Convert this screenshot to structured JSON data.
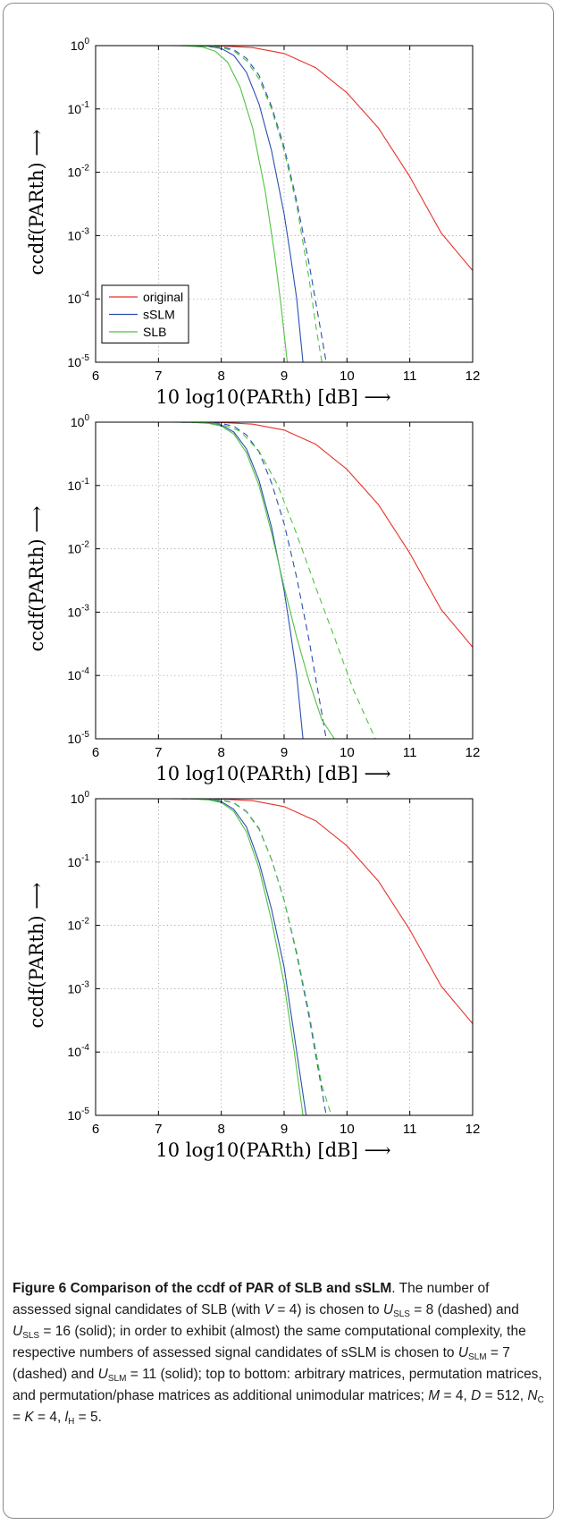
{
  "figure": {
    "caption": {
      "label": "Figure 6",
      "title": "Comparison of the ccdf of PAR of SLB and sSLM",
      "t1": ". The number of assessed signal candidates of SLB (with ",
      "V": "V",
      "t2": " = 4) is chosen to ",
      "U": "U",
      "SLS": "SLS",
      "t3": " = 8 (dashed) and ",
      "t4": " = 16 (solid); in order to exhibit (almost) the same computational complexity, the respective numbers of assessed signal candidates of sSLM is chosen to ",
      "SLM": "SLM",
      "t5": " = 7 (dashed) and ",
      "t6": " = 11 (solid); top to bottom: arbitrary matrices, permutation matrices, and permutation/phase matrices as additional unimodular matrices; ",
      "M": "M",
      "t7": " = 4, ",
      "D": "D",
      "t8": " = 512, ",
      "N": "N",
      "C": "C",
      "t9": " = ",
      "K": "K",
      "t10": " = 4, ",
      "l": "l",
      "H": "H",
      "t11": " = 5."
    }
  },
  "chart_data": [
    {
      "type": "line",
      "x_scale": "linear",
      "y_scale": "log",
      "xlim": [
        6,
        12
      ],
      "ylim": [
        1e-05,
        1
      ],
      "grid": true,
      "x_ticks": [
        "6",
        "7",
        "8",
        "9",
        "10",
        "11",
        "12"
      ],
      "y_ticks": [
        "10^0",
        "10^-1",
        "10^-2",
        "10^-3",
        "10^-4",
        "10^-5"
      ],
      "xlabel": "10 log10(PARth) [dB]  ⟶",
      "ylabel": "ccdf(PARth)  ⟶",
      "legend": {
        "position": "bottom-left",
        "entries": [
          {
            "name": "original",
            "color": "#e8312a"
          },
          {
            "name": "sSLM",
            "color": "#2a4fb0"
          },
          {
            "name": "SLB",
            "color": "#50c240"
          }
        ]
      },
      "series": [
        {
          "name": "original",
          "style": "solid",
          "color": "#e8312a",
          "x": [
            7.4,
            8.0,
            8.5,
            9.0,
            9.5,
            10.0,
            10.5,
            11.0,
            11.5,
            12.0
          ],
          "y": [
            1,
            0.99,
            0.93,
            0.75,
            0.45,
            0.18,
            0.05,
            0.0085,
            0.0011,
            0.00028
          ]
        },
        {
          "name": "sSLM",
          "style": "dashed",
          "color": "#2a4fb0",
          "x": [
            7.3,
            7.6,
            8.0,
            8.2,
            8.4,
            8.6,
            8.8,
            9.0,
            9.2,
            9.4,
            9.6,
            9.67
          ],
          "y": [
            1,
            0.998,
            0.96,
            0.86,
            0.63,
            0.34,
            0.11,
            0.025,
            0.0035,
            0.00035,
            2.5e-05,
            1e-05
          ]
        },
        {
          "name": "sSLM",
          "style": "solid",
          "color": "#2a4fb0",
          "x": [
            7.2,
            7.5,
            7.8,
            8.0,
            8.2,
            8.4,
            8.6,
            8.8,
            9.0,
            9.1,
            9.2,
            9.3
          ],
          "y": [
            1,
            0.998,
            0.97,
            0.9,
            0.7,
            0.38,
            0.12,
            0.022,
            0.0022,
            0.0005,
            0.0001,
            1e-05
          ]
        },
        {
          "name": "SLB",
          "style": "dashed",
          "color": "#50c240",
          "x": [
            7.3,
            7.6,
            8.0,
            8.2,
            8.4,
            8.6,
            8.8,
            9.0,
            9.2,
            9.4,
            9.5,
            9.6
          ],
          "y": [
            1,
            0.997,
            0.94,
            0.82,
            0.58,
            0.3,
            0.1,
            0.022,
            0.003,
            0.0002,
            4e-05,
            1e-05
          ]
        },
        {
          "name": "SLB",
          "style": "solid",
          "color": "#50c240",
          "x": [
            7.1,
            7.4,
            7.7,
            7.9,
            8.1,
            8.3,
            8.5,
            8.7,
            8.85,
            8.95,
            9.05
          ],
          "y": [
            1,
            0.998,
            0.95,
            0.82,
            0.55,
            0.22,
            0.05,
            0.005,
            0.0005,
            8e-05,
            1e-05
          ]
        }
      ]
    },
    {
      "type": "line",
      "x_scale": "linear",
      "y_scale": "log",
      "xlim": [
        6,
        12
      ],
      "ylim": [
        1e-05,
        1
      ],
      "grid": true,
      "x_ticks": [
        "6",
        "7",
        "8",
        "9",
        "10",
        "11",
        "12"
      ],
      "y_ticks": [
        "10^0",
        "10^-1",
        "10^-2",
        "10^-3",
        "10^-4",
        "10^-5"
      ],
      "xlabel": "10 log10(PARth) [dB]  ⟶",
      "ylabel": "ccdf(PARth)  ⟶",
      "series": [
        {
          "name": "original",
          "style": "solid",
          "color": "#e8312a",
          "x": [
            7.4,
            8.0,
            8.5,
            9.0,
            9.5,
            10.0,
            10.5,
            11.0,
            11.5,
            12.0
          ],
          "y": [
            1,
            0.99,
            0.93,
            0.75,
            0.45,
            0.18,
            0.05,
            0.0085,
            0.0011,
            0.00028
          ]
        },
        {
          "name": "sSLM",
          "style": "dashed",
          "color": "#2a4fb0",
          "x": [
            7.3,
            7.6,
            8.0,
            8.2,
            8.4,
            8.6,
            8.8,
            9.0,
            9.2,
            9.4,
            9.6,
            9.67
          ],
          "y": [
            1,
            0.998,
            0.96,
            0.86,
            0.63,
            0.34,
            0.11,
            0.025,
            0.0035,
            0.00035,
            2.5e-05,
            1e-05
          ]
        },
        {
          "name": "sSLM",
          "style": "solid",
          "color": "#2a4fb0",
          "x": [
            7.2,
            7.5,
            7.8,
            8.0,
            8.2,
            8.4,
            8.6,
            8.8,
            9.0,
            9.1,
            9.2,
            9.3
          ],
          "y": [
            1,
            0.998,
            0.97,
            0.9,
            0.7,
            0.38,
            0.12,
            0.022,
            0.0022,
            0.0005,
            0.0001,
            1e-05
          ]
        },
        {
          "name": "SLB",
          "style": "dashed",
          "color": "#50c240",
          "x": [
            7.3,
            7.6,
            8.0,
            8.3,
            8.6,
            8.9,
            9.2,
            9.5,
            9.8,
            10.1,
            10.45
          ],
          "y": [
            1,
            0.995,
            0.93,
            0.72,
            0.35,
            0.1,
            0.017,
            0.0025,
            0.0004,
            6e-05,
            1e-05
          ]
        },
        {
          "name": "SLB",
          "style": "solid",
          "color": "#50c240",
          "x": [
            7.2,
            7.5,
            7.8,
            8.0,
            8.2,
            8.4,
            8.6,
            8.8,
            9.0,
            9.2,
            9.4,
            9.6,
            9.8
          ],
          "y": [
            1,
            0.996,
            0.96,
            0.87,
            0.65,
            0.33,
            0.1,
            0.018,
            0.0025,
            0.0004,
            8e-05,
            2e-05,
            1e-05
          ]
        }
      ]
    },
    {
      "type": "line",
      "x_scale": "linear",
      "y_scale": "log",
      "xlim": [
        6,
        12
      ],
      "ylim": [
        1e-05,
        1
      ],
      "grid": true,
      "x_ticks": [
        "6",
        "7",
        "8",
        "9",
        "10",
        "11",
        "12"
      ],
      "y_ticks": [
        "10^0",
        "10^-1",
        "10^-2",
        "10^-3",
        "10^-4",
        "10^-5"
      ],
      "xlabel": "10 log10(PARth) [dB]  ⟶",
      "ylabel": "ccdf(PARth)  ⟶",
      "series": [
        {
          "name": "original",
          "style": "solid",
          "color": "#e8312a",
          "x": [
            7.4,
            8.0,
            8.5,
            9.0,
            9.5,
            10.0,
            10.5,
            11.0,
            11.5,
            12.0
          ],
          "y": [
            1,
            0.99,
            0.93,
            0.75,
            0.45,
            0.18,
            0.05,
            0.0085,
            0.0011,
            0.00028
          ]
        },
        {
          "name": "sSLM",
          "style": "dashed",
          "color": "#2a4fb0",
          "x": [
            7.3,
            7.6,
            8.0,
            8.2,
            8.4,
            8.6,
            8.8,
            9.0,
            9.2,
            9.4,
            9.6,
            9.67
          ],
          "y": [
            1,
            0.998,
            0.96,
            0.86,
            0.63,
            0.34,
            0.11,
            0.025,
            0.0035,
            0.00035,
            2.5e-05,
            1e-05
          ]
        },
        {
          "name": "sSLM",
          "style": "solid",
          "color": "#2a4fb0",
          "x": [
            7.2,
            7.5,
            7.8,
            8.0,
            8.2,
            8.4,
            8.6,
            8.8,
            9.0,
            9.2,
            9.35
          ],
          "y": [
            1,
            0.998,
            0.97,
            0.9,
            0.68,
            0.36,
            0.1,
            0.018,
            0.0022,
            0.0001,
            1e-05
          ]
        },
        {
          "name": "SLB",
          "style": "dashed",
          "color": "#50c240",
          "x": [
            7.3,
            7.6,
            8.0,
            8.2,
            8.4,
            8.6,
            8.8,
            9.0,
            9.2,
            9.4,
            9.6,
            9.75
          ],
          "y": [
            1,
            0.997,
            0.95,
            0.85,
            0.62,
            0.33,
            0.11,
            0.025,
            0.0038,
            0.0004,
            3e-05,
            1e-05
          ]
        },
        {
          "name": "SLB",
          "style": "solid",
          "color": "#50c240",
          "x": [
            7.2,
            7.5,
            7.8,
            8.0,
            8.2,
            8.4,
            8.6,
            8.8,
            9.0,
            9.15,
            9.3
          ],
          "y": [
            1,
            0.997,
            0.96,
            0.87,
            0.63,
            0.3,
            0.08,
            0.012,
            0.0012,
            0.00012,
            1e-05
          ]
        }
      ]
    }
  ]
}
